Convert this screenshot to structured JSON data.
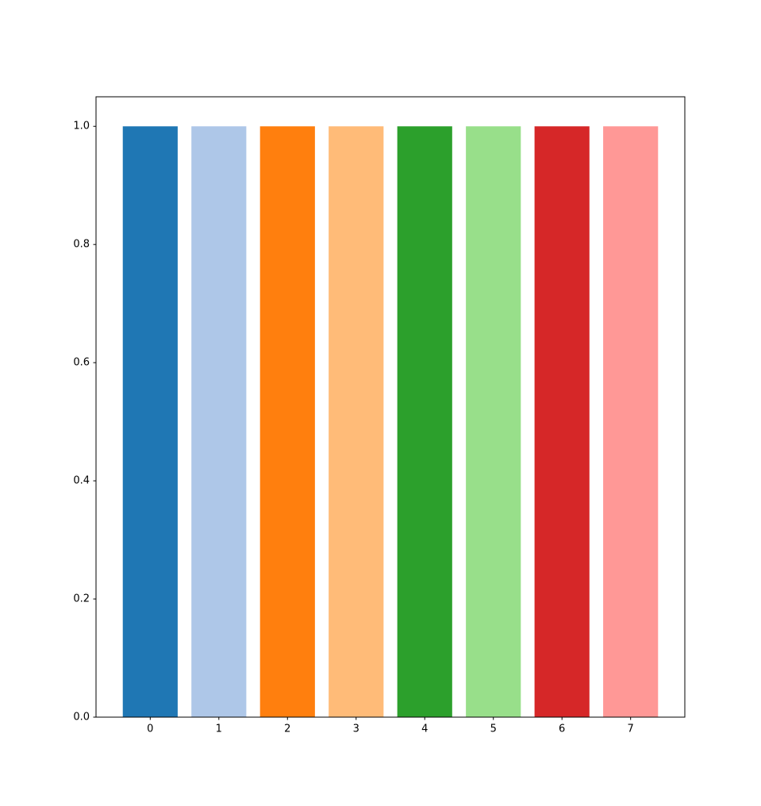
{
  "chart_data": {
    "type": "bar",
    "x": [
      0,
      1,
      2,
      3,
      4,
      5,
      6,
      7
    ],
    "values": [
      1,
      1,
      1,
      1,
      1,
      1,
      1,
      1
    ],
    "colors": [
      "#1f77b4",
      "#aec7e8",
      "#ff7f0e",
      "#ffbb78",
      "#2ca02c",
      "#98df8a",
      "#d62728",
      "#ff9896"
    ],
    "xlim": [
      -0.79,
      7.79
    ],
    "xticks": [
      0,
      1,
      2,
      3,
      4,
      5,
      6,
      7
    ],
    "ylim": [
      0,
      1.05
    ],
    "yticks": [
      {
        "value": 0,
        "label": "0.0"
      },
      0.2,
      0.4,
      0.6,
      0.8,
      {
        "value": 1,
        "label": "1.0"
      }
    ],
    "grid": false
  }
}
